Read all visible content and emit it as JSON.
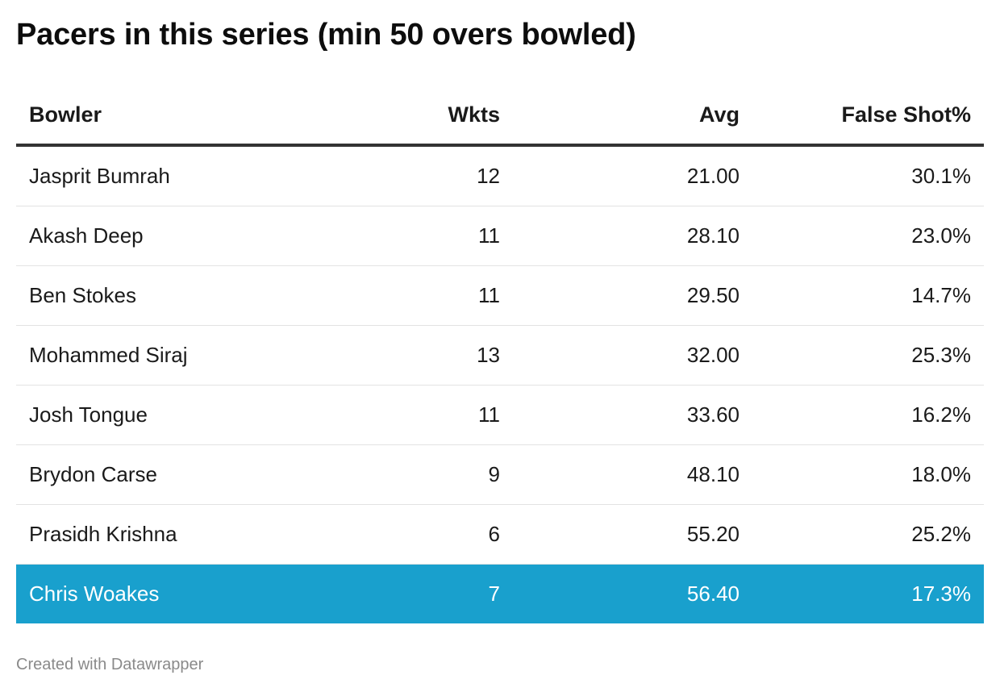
{
  "title": "Pacers in this series (min 50 overs bowled)",
  "footer": "Created with Datawrapper",
  "colors": {
    "highlight_row": "#19a0cd",
    "header_rule": "#333333",
    "row_divider": "#e3e3e3",
    "footer_text": "#8a8a8a"
  },
  "chart_data": {
    "type": "table",
    "title": "Pacers in this series (min 50 overs bowled)",
    "columns": [
      "Bowler",
      "Wkts",
      "Avg",
      "False Shot%"
    ],
    "highlighted_row": "Chris Woakes",
    "rows": [
      {
        "bowler": "Jasprit Bumrah",
        "wkts": "12",
        "avg": "21.00",
        "false_shot": "30.1%"
      },
      {
        "bowler": "Akash Deep",
        "wkts": "11",
        "avg": "28.10",
        "false_shot": "23.0%"
      },
      {
        "bowler": "Ben Stokes",
        "wkts": "11",
        "avg": "29.50",
        "false_shot": "14.7%"
      },
      {
        "bowler": "Mohammed Siraj",
        "wkts": "13",
        "avg": "32.00",
        "false_shot": "25.3%"
      },
      {
        "bowler": "Josh Tongue",
        "wkts": "11",
        "avg": "33.60",
        "false_shot": "16.2%"
      },
      {
        "bowler": "Brydon Carse",
        "wkts": "9",
        "avg": "48.10",
        "false_shot": "18.0%"
      },
      {
        "bowler": "Prasidh Krishna",
        "wkts": "6",
        "avg": "55.20",
        "false_shot": "25.2%"
      },
      {
        "bowler": "Chris Woakes",
        "wkts": "7",
        "avg": "56.40",
        "false_shot": "17.3%"
      }
    ]
  }
}
